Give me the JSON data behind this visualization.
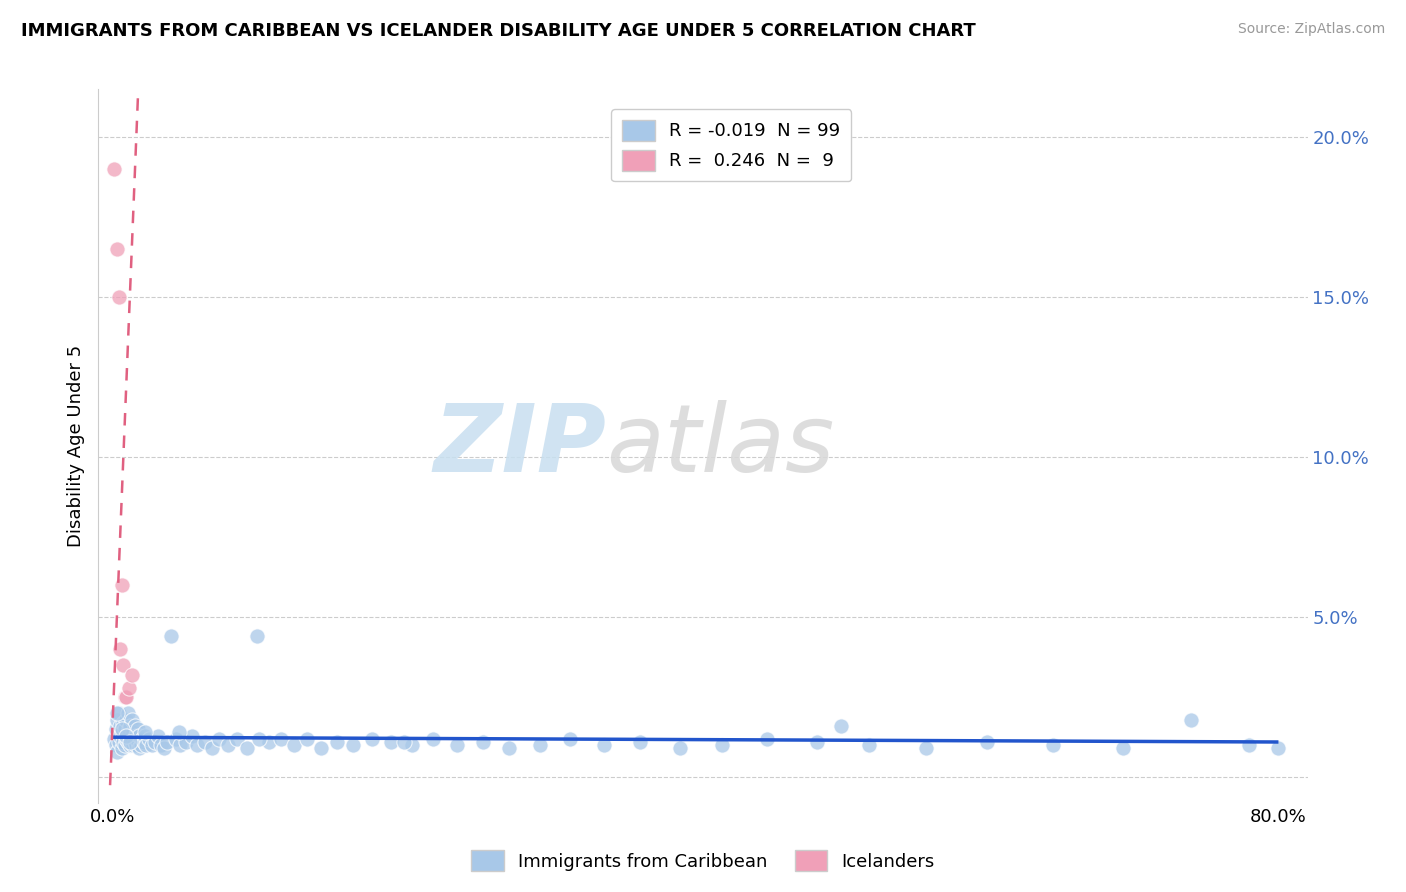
{
  "title": "IMMIGRANTS FROM CARIBBEAN VS ICELANDER DISABILITY AGE UNDER 5 CORRELATION CHART",
  "source": "Source: ZipAtlas.com",
  "ylabel": "Disability Age Under 5",
  "watermark_zip": "ZIP",
  "watermark_atlas": "atlas",
  "caribbean_color": "#a8c8e8",
  "icelander_color": "#f0a0b8",
  "trend_caribbean_color": "#2255cc",
  "trend_icelander_color": "#e06080",
  "background_color": "#ffffff",
  "grid_color": "#cccccc",
  "y_tick_vals": [
    0.0,
    0.05,
    0.1,
    0.15,
    0.2
  ],
  "y_tick_labels": [
    "",
    "5.0%",
    "10.0%",
    "15.0%",
    "20.0%"
  ],
  "xlim": [
    -0.01,
    0.82
  ],
  "ylim": [
    -0.008,
    0.215
  ],
  "caribbean_x": [
    0.001,
    0.002,
    0.002,
    0.003,
    0.003,
    0.004,
    0.004,
    0.005,
    0.005,
    0.006,
    0.006,
    0.007,
    0.007,
    0.008,
    0.008,
    0.009,
    0.009,
    0.01,
    0.01,
    0.011,
    0.011,
    0.012,
    0.012,
    0.013,
    0.013,
    0.014,
    0.014,
    0.015,
    0.015,
    0.016,
    0.016,
    0.017,
    0.017,
    0.018,
    0.018,
    0.019,
    0.02,
    0.021,
    0.022,
    0.023,
    0.025,
    0.027,
    0.029,
    0.031,
    0.033,
    0.035,
    0.037,
    0.04,
    0.043,
    0.046,
    0.05,
    0.054,
    0.058,
    0.063,
    0.068,
    0.073,
    0.079,
    0.085,
    0.092,
    0.099,
    0.107,
    0.115,
    0.124,
    0.133,
    0.143,
    0.154,
    0.165,
    0.178,
    0.191,
    0.205,
    0.22,
    0.236,
    0.254,
    0.272,
    0.293,
    0.314,
    0.337,
    0.362,
    0.389,
    0.418,
    0.449,
    0.483,
    0.519,
    0.558,
    0.6,
    0.645,
    0.693,
    0.74,
    0.78,
    0.8,
    0.003,
    0.006,
    0.009,
    0.012,
    0.022,
    0.045,
    0.1,
    0.2,
    0.5
  ],
  "caribbean_y": [
    0.012,
    0.01,
    0.015,
    0.008,
    0.018,
    0.011,
    0.02,
    0.013,
    0.016,
    0.009,
    0.014,
    0.011,
    0.017,
    0.01,
    0.015,
    0.012,
    0.018,
    0.011,
    0.02,
    0.013,
    0.015,
    0.01,
    0.016,
    0.012,
    0.018,
    0.01,
    0.014,
    0.011,
    0.016,
    0.01,
    0.013,
    0.011,
    0.015,
    0.009,
    0.013,
    0.01,
    0.012,
    0.011,
    0.013,
    0.01,
    0.012,
    0.01,
    0.011,
    0.013,
    0.01,
    0.009,
    0.011,
    0.044,
    0.012,
    0.01,
    0.011,
    0.013,
    0.01,
    0.011,
    0.009,
    0.012,
    0.01,
    0.012,
    0.009,
    0.044,
    0.011,
    0.012,
    0.01,
    0.012,
    0.009,
    0.011,
    0.01,
    0.012,
    0.011,
    0.01,
    0.012,
    0.01,
    0.011,
    0.009,
    0.01,
    0.012,
    0.01,
    0.011,
    0.009,
    0.01,
    0.012,
    0.011,
    0.01,
    0.009,
    0.011,
    0.01,
    0.009,
    0.018,
    0.01,
    0.009,
    0.02,
    0.015,
    0.013,
    0.011,
    0.014,
    0.014,
    0.012,
    0.011,
    0.016
  ],
  "icelander_x": [
    0.001,
    0.003,
    0.004,
    0.005,
    0.006,
    0.007,
    0.008,
    0.009,
    0.011,
    0.013
  ],
  "icelander_y": [
    0.19,
    0.165,
    0.15,
    0.04,
    0.06,
    0.035,
    0.025,
    0.025,
    0.028,
    0.032
  ]
}
